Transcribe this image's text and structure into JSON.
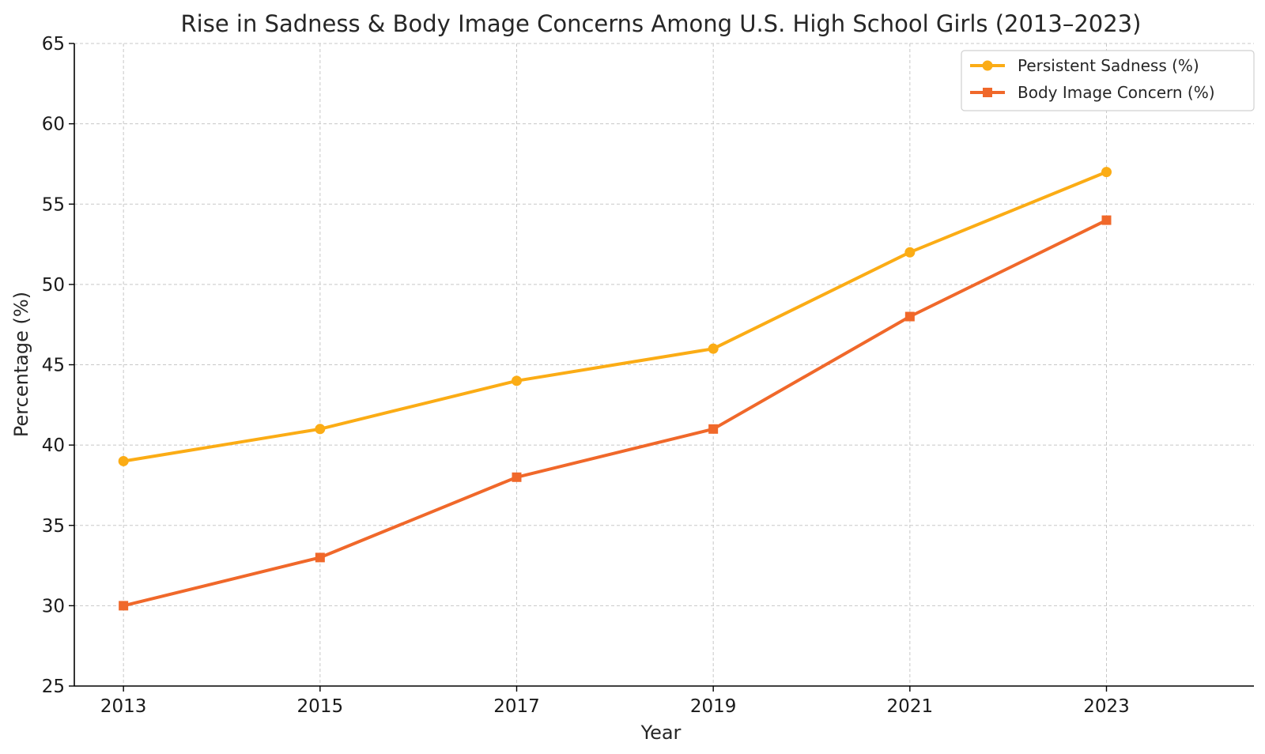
{
  "chart_data": {
    "type": "line",
    "title": "Rise in Sadness & Body Image Concerns Among U.S. High School Girls (2013–2023)",
    "xlabel": "Year",
    "ylabel": "Percentage (%)",
    "x": [
      2013,
      2015,
      2017,
      2019,
      2021,
      2023
    ],
    "xticks": [
      "2013",
      "2015",
      "2017",
      "2019",
      "2021",
      "2023"
    ],
    "yticks": [
      "25",
      "30",
      "35",
      "40",
      "45",
      "50",
      "55",
      "60",
      "65"
    ],
    "ylim": [
      25,
      65
    ],
    "xlim": [
      2012.5,
      2024.5
    ],
    "grid": true,
    "legend_position": "top-right",
    "series": [
      {
        "name": "Persistent Sadness (%)",
        "values": [
          39,
          41,
          44,
          46,
          52,
          57
        ],
        "color": "#fbac15",
        "marker": "circle"
      },
      {
        "name": "Body Image Concern (%)",
        "values": [
          30,
          33,
          38,
          41,
          48,
          54
        ],
        "color": "#f0682a",
        "marker": "square"
      }
    ]
  }
}
